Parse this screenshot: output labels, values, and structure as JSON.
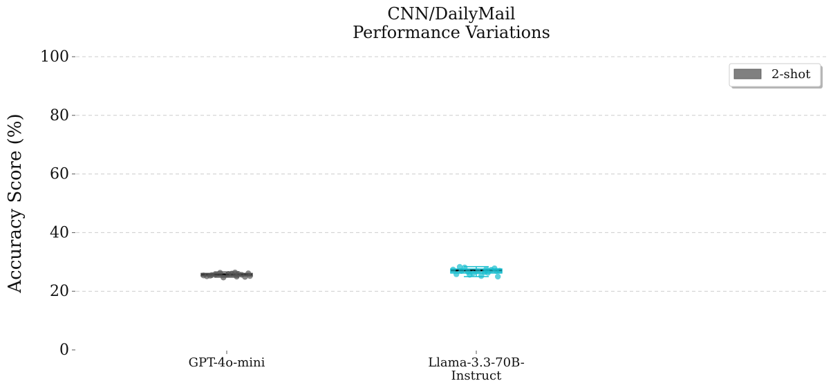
{
  "chart_data": {
    "type": "box",
    "title": "CNN/DailyMail",
    "subtitle": "Performance Variations",
    "xlabel": "",
    "ylabel": "Accuracy Score (%)",
    "ylim": [
      0,
      100
    ],
    "yticks": [
      0,
      20,
      40,
      60,
      80,
      100
    ],
    "grid": "y-dashed",
    "legend": {
      "placement": "top-right",
      "entries": [
        {
          "label": "2-shot",
          "color": "#808080"
        }
      ]
    },
    "categories": [
      [
        "GPT-4o-mini"
      ],
      [
        "Llama-3.3-70B-",
        "Instruct"
      ]
    ],
    "series": [
      {
        "name": "2-shot",
        "boxes": [
          {
            "category": "GPT-4o-mini",
            "color": "#555555",
            "whisker_low": 24.8,
            "q1": 25.2,
            "median": 25.7,
            "q3": 26.1,
            "whisker_high": 26.6,
            "points": [
              25.4,
              25.9,
              26.3,
              24.9,
              25.5,
              26.0,
              25.2,
              25.8,
              26.4,
              25.1,
              25.6,
              24.7,
              26.1,
              25.3,
              25.9,
              25.0
            ]
          },
          {
            "category": "Llama-3.3-70B-Instruct",
            "color": "#17becf",
            "whisker_low": 25.0,
            "q1": 26.2,
            "median": 27.1,
            "q3": 27.6,
            "whisker_high": 28.4,
            "points": [
              27.4,
              26.3,
              25.6,
              27.8,
              26.9,
              25.2,
              27.0,
              28.1,
              26.5,
              25.8,
              27.3,
              26.1,
              25.0,
              28.3,
              26.8,
              27.5,
              26.6,
              26.9
            ]
          }
        ]
      }
    ]
  }
}
